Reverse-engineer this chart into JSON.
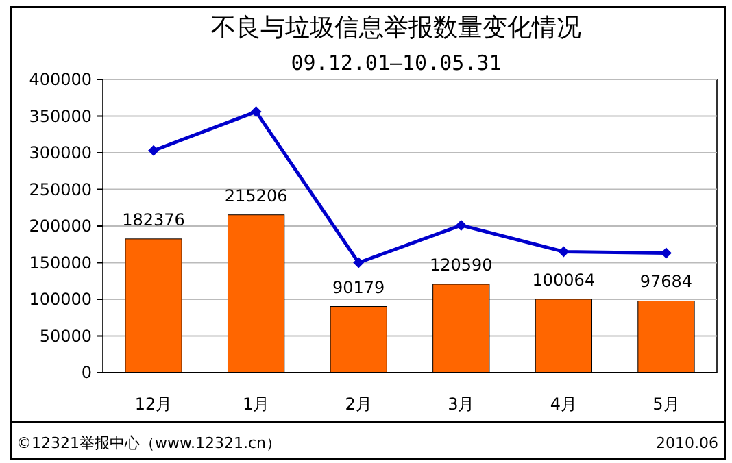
{
  "chart_data": {
    "type": "bar",
    "title": "不良与垃圾信息举报数量变化情况",
    "subtitle": "09.12.01—10.05.31",
    "categories": [
      "12月",
      "1月",
      "2月",
      "3月",
      "4月",
      "5月"
    ],
    "series": [
      {
        "color": "#ff6600",
        "values": [
          182376,
          215206,
          90179,
          120590,
          100064,
          97684
        ],
        "data_labels": true
      },
      {
        "type": "line",
        "color": "#0000cc",
        "values": [
          303000,
          356000,
          150000,
          201000,
          165000,
          163000
        ],
        "marker": "diamond"
      }
    ],
    "ylim": [
      0,
      400000
    ],
    "yticks": [
      0,
      50000,
      100000,
      150000,
      200000,
      250000,
      300000,
      350000,
      400000
    ],
    "grid": "y",
    "annotations": [
      "©12321举报中心（www.12321.cn）",
      "2010.06"
    ]
  }
}
